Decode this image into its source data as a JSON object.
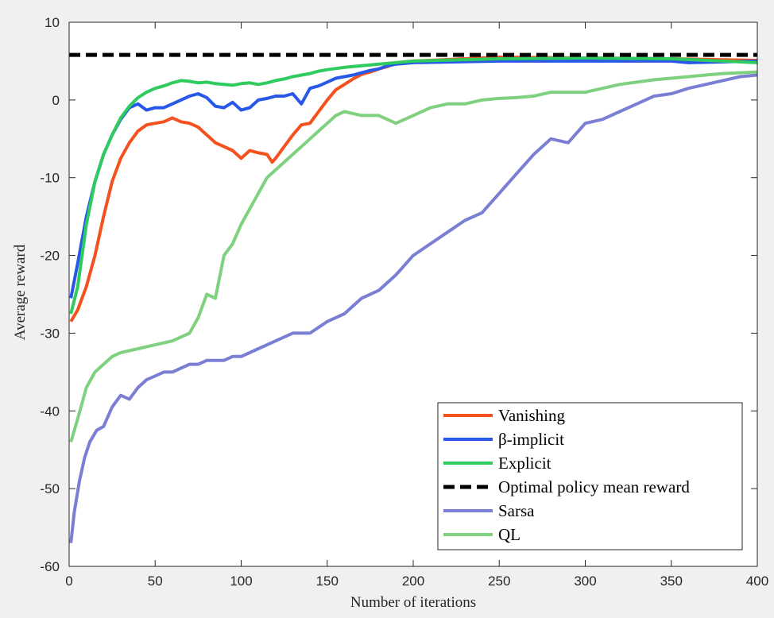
{
  "chart_data": {
    "type": "line",
    "xlabel": "Number of iterations",
    "ylabel": "Average reward",
    "xlim": [
      0,
      400
    ],
    "ylim": [
      -60,
      10
    ],
    "xticks": [
      0,
      50,
      100,
      150,
      200,
      250,
      300,
      350,
      400
    ],
    "yticks": [
      10,
      0,
      -10,
      -20,
      -30,
      -40,
      -50,
      -60
    ],
    "grid": false,
    "legend_position": "bottom-right",
    "series": [
      {
        "name": "Vanishing",
        "color": "#f4511e",
        "dash": false,
        "x": [
          1,
          5,
          10,
          15,
          20,
          25,
          30,
          35,
          40,
          45,
          50,
          55,
          60,
          65,
          70,
          75,
          80,
          85,
          90,
          95,
          100,
          105,
          110,
          115,
          118,
          120,
          125,
          130,
          135,
          140,
          145,
          150,
          155,
          160,
          165,
          170,
          175,
          180,
          185,
          190,
          195,
          200,
          220,
          250,
          300,
          350,
          400
        ],
        "y": [
          -28.5,
          -27,
          -24,
          -20,
          -15,
          -10.5,
          -7.5,
          -5.5,
          -4,
          -3.2,
          -3,
          -2.8,
          -2.3,
          -2.8,
          -3,
          -3.5,
          -4.5,
          -5.5,
          -6,
          -6.5,
          -7.5,
          -6.5,
          -6.8,
          -7,
          -8,
          -7.5,
          -6,
          -4.5,
          -3.2,
          -3,
          -1.5,
          0,
          1.3,
          2,
          2.7,
          3.3,
          3.6,
          4,
          4.3,
          4.7,
          4.9,
          5,
          5.2,
          5.5,
          5.4,
          5.3,
          5.1
        ]
      },
      {
        "name": "β-implicit",
        "color": "#2758e8",
        "dash": false,
        "x": [
          1,
          5,
          10,
          15,
          20,
          25,
          30,
          35,
          40,
          45,
          50,
          55,
          60,
          65,
          70,
          75,
          80,
          85,
          90,
          95,
          100,
          105,
          110,
          115,
          120,
          125,
          130,
          135,
          140,
          145,
          150,
          155,
          160,
          165,
          170,
          175,
          180,
          185,
          190,
          195,
          200,
          250,
          300,
          350,
          360,
          400
        ],
        "y": [
          -25.5,
          -21,
          -15,
          -10.5,
          -7,
          -4.5,
          -2.5,
          -1,
          -0.5,
          -1.3,
          -1,
          -1,
          -0.5,
          0,
          0.5,
          0.8,
          0.3,
          -0.8,
          -1,
          -0.3,
          -1.3,
          -1,
          0,
          0.2,
          0.5,
          0.5,
          0.8,
          -0.5,
          1.5,
          1.8,
          2.3,
          2.8,
          3,
          3.2,
          3.5,
          3.8,
          4,
          4.4,
          4.6,
          4.7,
          4.8,
          5,
          5,
          5,
          4.8,
          5
        ]
      },
      {
        "name": "Explicit",
        "color": "#2fcb5e",
        "dash": false,
        "x": [
          1,
          5,
          10,
          15,
          20,
          25,
          30,
          35,
          40,
          45,
          50,
          55,
          60,
          65,
          70,
          75,
          80,
          85,
          90,
          95,
          100,
          105,
          110,
          115,
          120,
          125,
          130,
          135,
          140,
          145,
          150,
          160,
          170,
          180,
          190,
          200,
          250,
          300,
          350,
          400
        ],
        "y": [
          -27.5,
          -24,
          -16,
          -10.5,
          -7,
          -4.5,
          -2.3,
          -0.8,
          0.3,
          1,
          1.5,
          1.8,
          2.2,
          2.5,
          2.4,
          2.2,
          2.3,
          2.1,
          2,
          1.9,
          2.1,
          2.2,
          2,
          2.2,
          2.5,
          2.7,
          3,
          3.2,
          3.4,
          3.7,
          3.9,
          4.2,
          4.4,
          4.6,
          4.8,
          5,
          5.3,
          5.4,
          5.3,
          4.8
        ]
      },
      {
        "name": "Optimal policy mean reward",
        "color": "#000000",
        "dash": true,
        "x": [
          0,
          400
        ],
        "y": [
          5.8,
          5.8
        ]
      },
      {
        "name": "Sarsa",
        "color": "#7b7fd4",
        "dash": false,
        "x": [
          1,
          3,
          6,
          9,
          12,
          16,
          20,
          25,
          30,
          35,
          40,
          45,
          50,
          55,
          60,
          65,
          70,
          75,
          80,
          85,
          90,
          95,
          100,
          110,
          120,
          130,
          140,
          150,
          160,
          170,
          180,
          190,
          200,
          210,
          220,
          230,
          240,
          250,
          260,
          270,
          280,
          290,
          300,
          310,
          320,
          330,
          340,
          350,
          360,
          370,
          380,
          390,
          400
        ],
        "y": [
          -57,
          -53,
          -49,
          -46,
          -44,
          -42.5,
          -42,
          -39.5,
          -38,
          -38.5,
          -37,
          -36,
          -35.5,
          -35,
          -35,
          -34.5,
          -34,
          -34,
          -33.5,
          -33.5,
          -33.5,
          -33,
          -33,
          -32,
          -31,
          -30,
          -30,
          -28.5,
          -27.5,
          -25.5,
          -24.5,
          -22.5,
          -20,
          -18.5,
          -17,
          -15.5,
          -14.5,
          -12,
          -9.5,
          -7,
          -5,
          -5.5,
          -3,
          -2.5,
          -1.5,
          -0.5,
          0.5,
          0.8,
          1.5,
          2,
          2.5,
          3,
          3.2
        ]
      },
      {
        "name": "QL",
        "color": "#7fd17f",
        "dash": false,
        "x": [
          1,
          5,
          10,
          15,
          20,
          25,
          30,
          40,
          50,
          60,
          65,
          70,
          75,
          80,
          85,
          90,
          95,
          100,
          105,
          110,
          115,
          120,
          125,
          130,
          135,
          140,
          145,
          150,
          155,
          160,
          170,
          180,
          190,
          200,
          210,
          220,
          230,
          240,
          250,
          260,
          270,
          280,
          290,
          300,
          310,
          320,
          330,
          340,
          350,
          360,
          370,
          380,
          390,
          400
        ],
        "y": [
          -44,
          -41,
          -37,
          -35,
          -34,
          -33,
          -32.5,
          -32,
          -31.5,
          -31,
          -30.5,
          -30,
          -28,
          -25,
          -25.5,
          -20,
          -18.5,
          -16,
          -14,
          -12,
          -10,
          -9,
          -8,
          -7,
          -6,
          -5,
          -4,
          -3,
          -2,
          -1.5,
          -2,
          -2,
          -3,
          -2,
          -1,
          -0.5,
          -0.5,
          0,
          0.2,
          0.3,
          0.5,
          1,
          1,
          1,
          1.5,
          2,
          2.3,
          2.6,
          2.8,
          3,
          3.2,
          3.4,
          3.5,
          3.6
        ]
      }
    ]
  }
}
